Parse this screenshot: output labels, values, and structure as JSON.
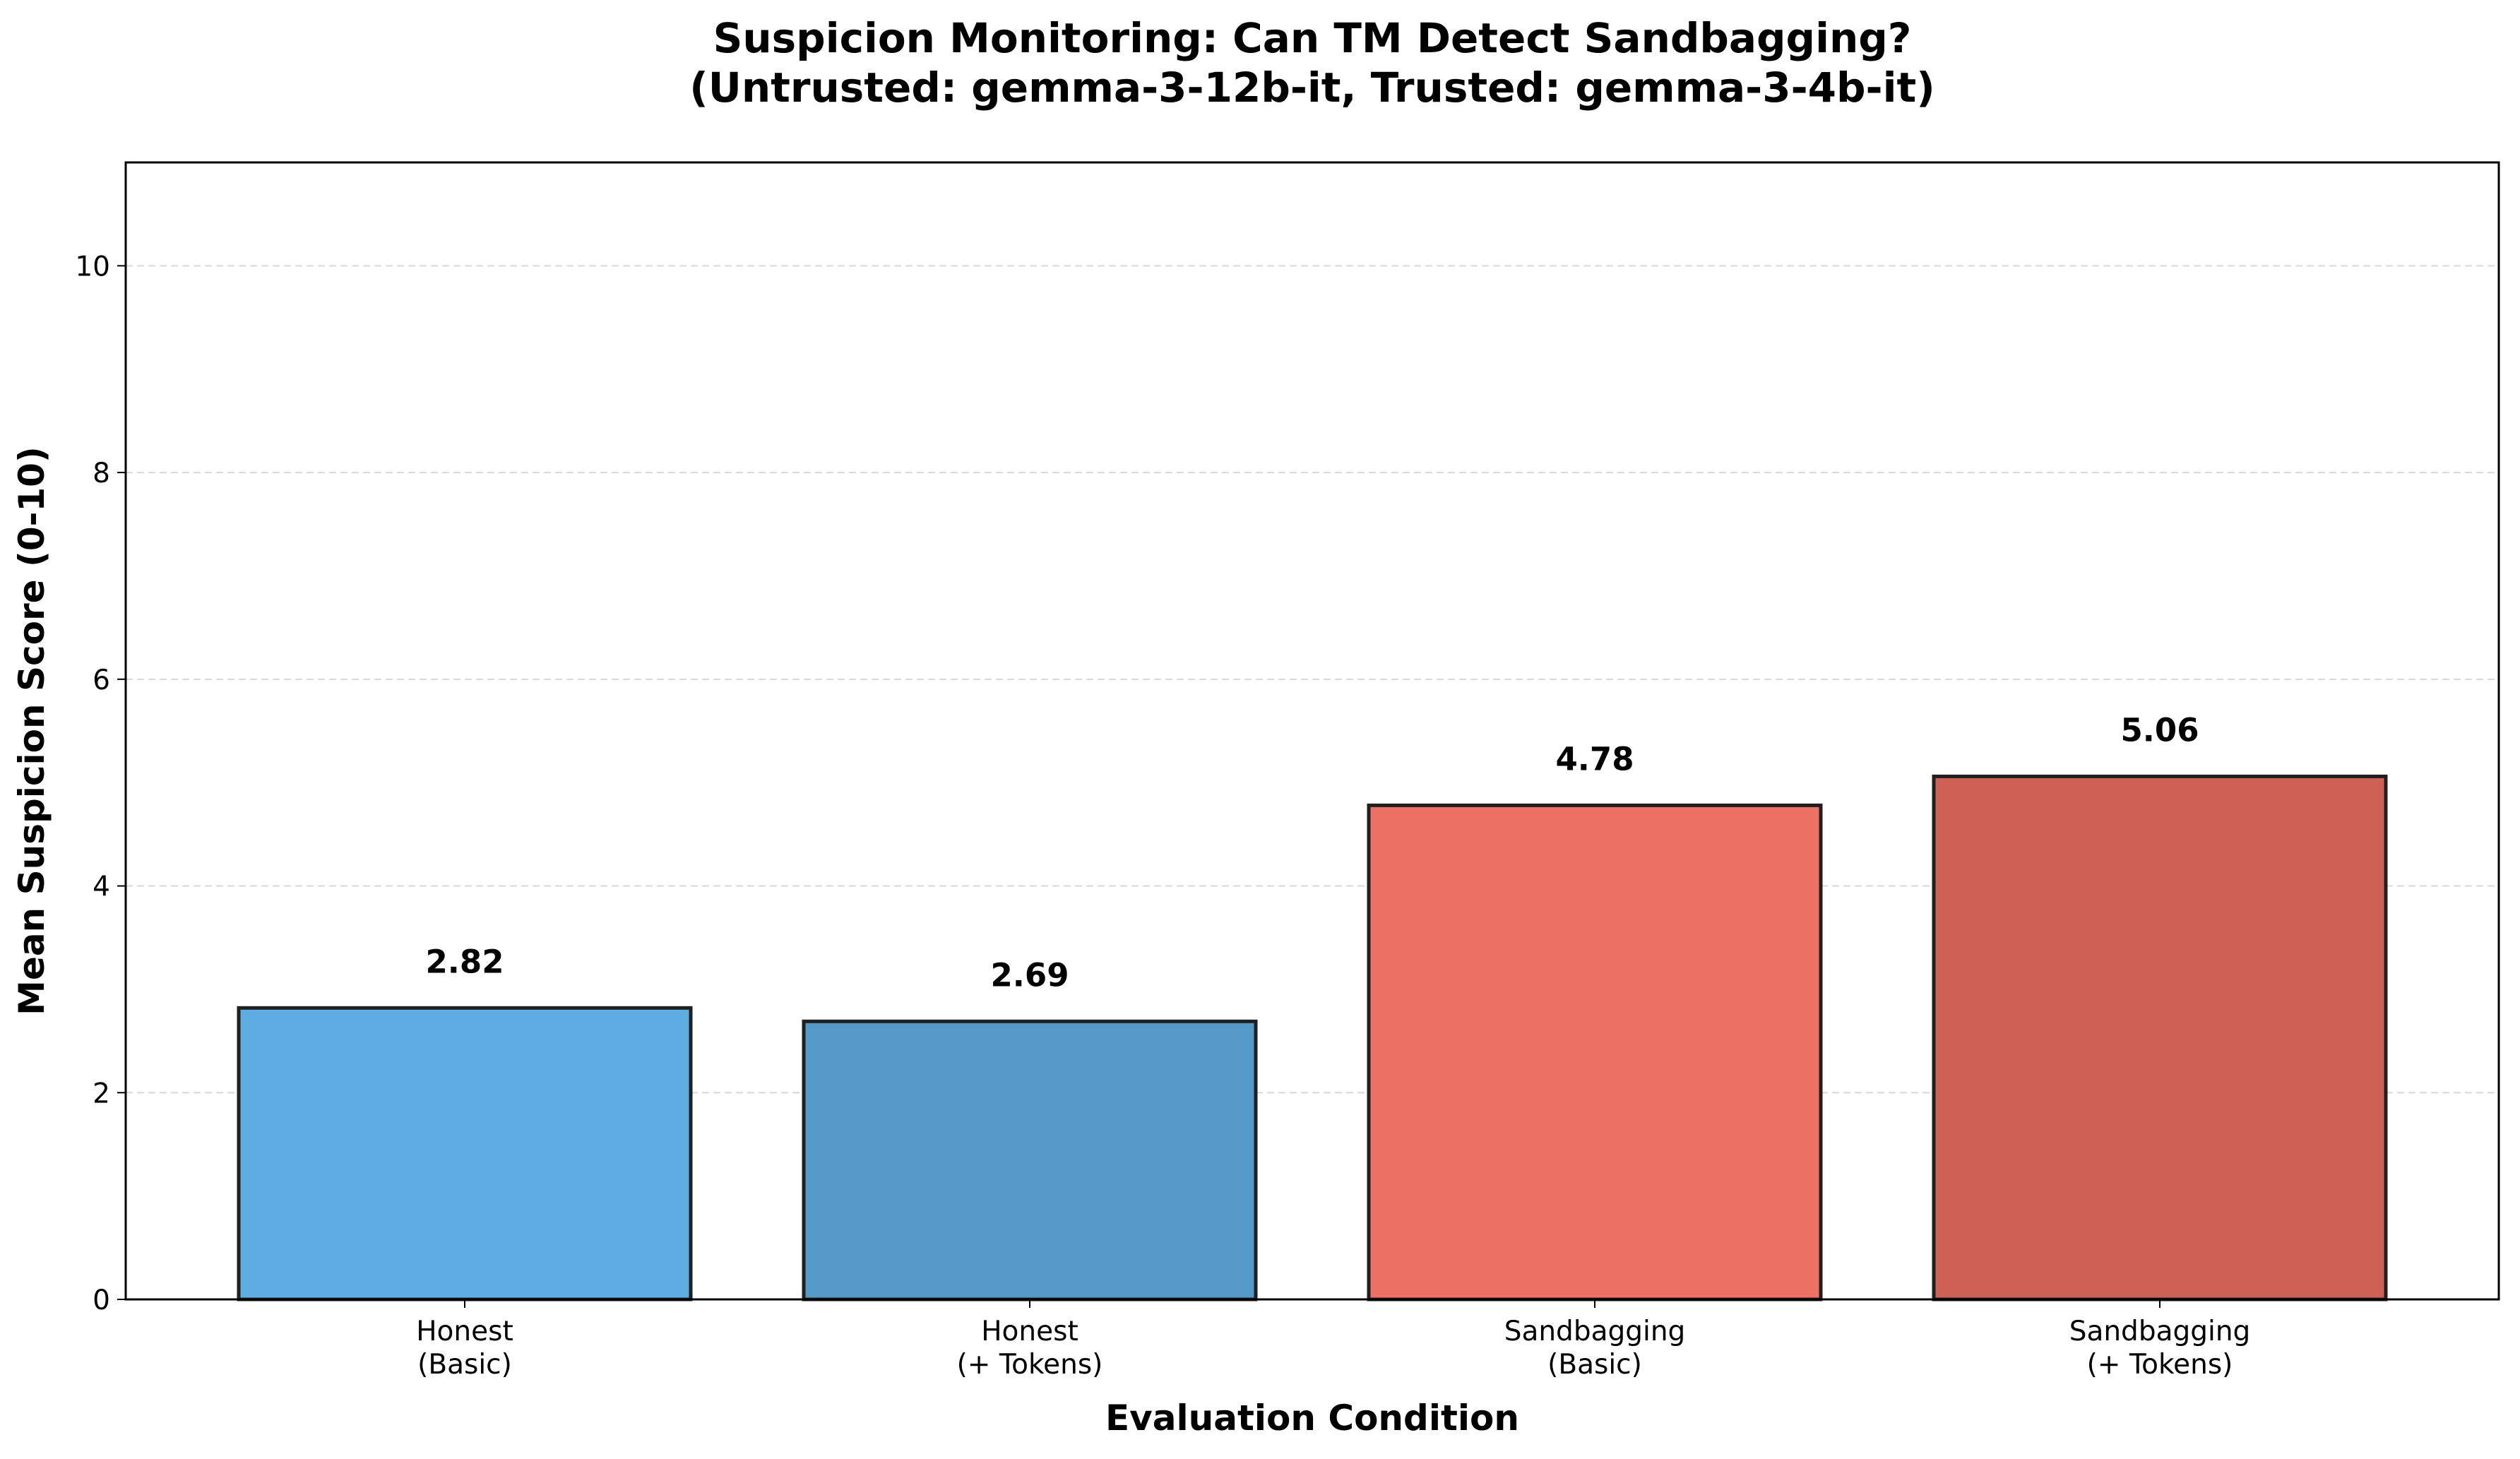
{
  "chart_data": {
    "type": "bar",
    "title": "Suspicion Monitoring: Can TM Detect Sandbagging?",
    "subtitle": "(Untrusted: gemma-3-12b-it, Trusted: gemma-3-4b-it)",
    "xlabel": "Evaluation Condition",
    "ylabel": "Mean Suspicion Score (0-10)",
    "ylim": [
      0,
      11
    ],
    "yticks": [
      0,
      2,
      4,
      6,
      8,
      10
    ],
    "grid": "y-dashed",
    "categories": [
      [
        "Honest",
        "(Basic)"
      ],
      [
        "Honest",
        "(+ Tokens)"
      ],
      [
        "Sandbagging",
        "(Basic)"
      ],
      [
        "Sandbagging",
        "(+ Tokens)"
      ]
    ],
    "values": [
      2.82,
      2.69,
      4.78,
      5.06
    ],
    "value_labels": [
      "2.82",
      "2.69",
      "4.78",
      "5.06"
    ],
    "colors": [
      "#5DADE2",
      "#5499C7",
      "#EC7063",
      "#CD6155"
    ],
    "edge_color": "#1f1f1f"
  }
}
